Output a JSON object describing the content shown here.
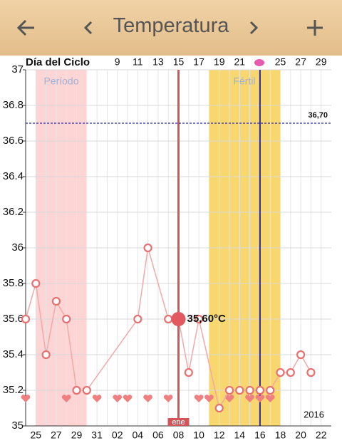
{
  "header": {
    "title": "Temperatura"
  },
  "chart_data": {
    "type": "line",
    "cycle_label": "Día del Ciclo",
    "categories": [
      null,
      "25",
      null,
      "27",
      null,
      "29",
      null,
      "31",
      null,
      "02",
      null,
      "04",
      null,
      "06",
      null,
      "08",
      null,
      "10",
      null,
      "12",
      null,
      "14",
      null,
      "16",
      null,
      "18",
      null,
      "20",
      null,
      "22"
    ],
    "cycle_days": [
      null,
      null,
      null,
      null,
      null,
      null,
      null,
      null,
      null,
      9,
      null,
      11,
      null,
      13,
      null,
      15,
      null,
      17,
      null,
      19,
      null,
      21,
      null,
      null,
      null,
      25,
      null,
      27,
      null,
      29
    ],
    "values": [
      35.6,
      35.8,
      35.4,
      35.7,
      35.6,
      35.2,
      35.2,
      null,
      null,
      null,
      null,
      35.6,
      36.0,
      null,
      35.6,
      35.6,
      35.3,
      35.6,
      null,
      35.1,
      35.2,
      35.2,
      35.2,
      35.2,
      35.2,
      35.3,
      35.3,
      35.4,
      35.3,
      null
    ],
    "color": "#e87070",
    "selected": {
      "index_label": "ene",
      "value_label": "35,60°C"
    },
    "reference": {
      "value": 36.7,
      "label": "36,70"
    },
    "bands": [
      {
        "name": "Período"
      },
      {
        "name": "Fértil"
      }
    ],
    "year": "2016",
    "ylim": [
      35,
      37
    ],
    "yticks": [
      35,
      35.2,
      35.4,
      35.6,
      35.8,
      36,
      36.2,
      36.4,
      36.6,
      36.8,
      37
    ],
    "grid": true
  }
}
